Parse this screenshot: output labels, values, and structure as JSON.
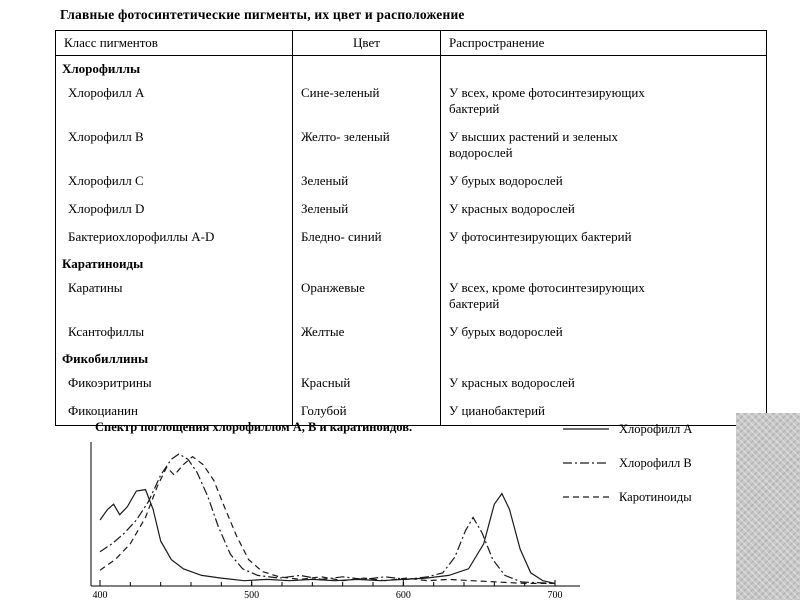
{
  "title": "Главные фотосинтетические пигменты, их цвет и расположение",
  "colors": {
    "background": "#ffffff",
    "text": "#000000",
    "line": "#1a1a1a",
    "side_panel": "#c8c8c8"
  },
  "table": {
    "headers": [
      "Класс пигментов",
      "Цвет",
      "Распространение"
    ],
    "rows": [
      {
        "kind": "section",
        "name": "Хлорофиллы"
      },
      {
        "kind": "data",
        "name": "Хлорофилл A",
        "color": "Сине-зеленый",
        "dist": "У всех, кроме  фотосинтезирующих\nбактерий"
      },
      {
        "kind": "data",
        "name": "Хлорофилл B",
        "color": "Желто- зеленый",
        "dist": "У высших растений и зеленых\nводорослей"
      },
      {
        "kind": "data",
        "name": "Хлорофилл C",
        "color": "Зеленый",
        "dist": "У бурых водорослей"
      },
      {
        "kind": "data",
        "name": "Хлорофилл D",
        "color": "Зеленый",
        "dist": "У красных водорослей"
      },
      {
        "kind": "data",
        "name": "Бактериохлорофиллы A-D",
        "color": "Бледно- синий",
        "dist": "У фотосинтезирующих бактерий"
      },
      {
        "kind": "section",
        "name": "Каратиноиды"
      },
      {
        "kind": "data",
        "name": "Каратины",
        "color": "Оранжевые",
        "dist": "У всех, кроме  фотосинтезирующих\nбактерий"
      },
      {
        "kind": "data",
        "name": "Ксантофиллы",
        "color": "Желтые",
        "dist": "У бурых водорослей"
      },
      {
        "kind": "section",
        "name": "Фикобиллины"
      },
      {
        "kind": "data",
        "name": "Фикоэритрины",
        "color": "Красный",
        "dist": "У красных водорослей"
      },
      {
        "kind": "data",
        "name": "Фикоцианин",
        "color": "Голубой",
        "dist": "У цианобактерий"
      }
    ]
  },
  "chart_data": {
    "type": "line",
    "title": "Спектр поглощения хлорофиллом A, B и каратиноидов.",
    "x_ticks": [
      400,
      500,
      600,
      700
    ],
    "x_range": [
      400,
      700
    ],
    "y_range": [
      0,
      1
    ],
    "grid": false,
    "legend_position": "right",
    "series": [
      {
        "name": "Хлорофилл A",
        "style": "solid",
        "points": [
          [
            400,
            0.5
          ],
          [
            405,
            0.58
          ],
          [
            409,
            0.62
          ],
          [
            413,
            0.54
          ],
          [
            418,
            0.6
          ],
          [
            424,
            0.72
          ],
          [
            430,
            0.73
          ],
          [
            435,
            0.58
          ],
          [
            440,
            0.34
          ],
          [
            447,
            0.2
          ],
          [
            455,
            0.13
          ],
          [
            467,
            0.08
          ],
          [
            480,
            0.06
          ],
          [
            495,
            0.04
          ],
          [
            510,
            0.05
          ],
          [
            525,
            0.04
          ],
          [
            540,
            0.05
          ],
          [
            555,
            0.04
          ],
          [
            570,
            0.05
          ],
          [
            585,
            0.04
          ],
          [
            600,
            0.05
          ],
          [
            615,
            0.06
          ],
          [
            630,
            0.08
          ],
          [
            643,
            0.13
          ],
          [
            653,
            0.32
          ],
          [
            660,
            0.62
          ],
          [
            665,
            0.7
          ],
          [
            670,
            0.58
          ],
          [
            677,
            0.28
          ],
          [
            684,
            0.1
          ],
          [
            692,
            0.04
          ],
          [
            700,
            0.02
          ]
        ]
      },
      {
        "name": "Хлорофилл B",
        "style": "dashdot",
        "points": [
          [
            400,
            0.26
          ],
          [
            408,
            0.32
          ],
          [
            416,
            0.4
          ],
          [
            424,
            0.5
          ],
          [
            432,
            0.64
          ],
          [
            440,
            0.84
          ],
          [
            447,
            0.96
          ],
          [
            452,
            1.0
          ],
          [
            458,
            0.96
          ],
          [
            464,
            0.86
          ],
          [
            471,
            0.68
          ],
          [
            478,
            0.45
          ],
          [
            486,
            0.24
          ],
          [
            494,
            0.13
          ],
          [
            504,
            0.08
          ],
          [
            518,
            0.06
          ],
          [
            532,
            0.08
          ],
          [
            546,
            0.05
          ],
          [
            560,
            0.07
          ],
          [
            574,
            0.05
          ],
          [
            588,
            0.07
          ],
          [
            602,
            0.05
          ],
          [
            616,
            0.07
          ],
          [
            626,
            0.1
          ],
          [
            634,
            0.22
          ],
          [
            641,
            0.42
          ],
          [
            646,
            0.52
          ],
          [
            652,
            0.4
          ],
          [
            659,
            0.2
          ],
          [
            667,
            0.08
          ],
          [
            678,
            0.03
          ],
          [
            700,
            0.02
          ]
        ]
      },
      {
        "name": "Каротиноиды",
        "style": "dashed",
        "points": [
          [
            400,
            0.12
          ],
          [
            410,
            0.2
          ],
          [
            420,
            0.32
          ],
          [
            430,
            0.52
          ],
          [
            438,
            0.76
          ],
          [
            444,
            0.9
          ],
          [
            449,
            0.84
          ],
          [
            455,
            0.92
          ],
          [
            461,
            0.98
          ],
          [
            468,
            0.92
          ],
          [
            475,
            0.8
          ],
          [
            482,
            0.6
          ],
          [
            490,
            0.38
          ],
          [
            498,
            0.2
          ],
          [
            507,
            0.11
          ],
          [
            518,
            0.07
          ],
          [
            532,
            0.05
          ],
          [
            546,
            0.07
          ],
          [
            560,
            0.04
          ],
          [
            574,
            0.06
          ],
          [
            588,
            0.04
          ],
          [
            602,
            0.06
          ],
          [
            616,
            0.04
          ],
          [
            630,
            0.05
          ],
          [
            645,
            0.04
          ],
          [
            662,
            0.03
          ],
          [
            680,
            0.02
          ],
          [
            700,
            0.02
          ]
        ]
      }
    ]
  }
}
